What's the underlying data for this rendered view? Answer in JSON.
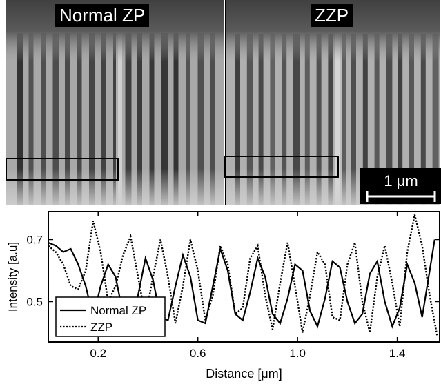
{
  "panels": {
    "left_label": "Normal ZP",
    "right_label": "ZZP",
    "scale_bar": "1 μm"
  },
  "chart_data": {
    "type": "line",
    "xlabel": "Distance [μm]",
    "ylabel": "Intensity [a.u]",
    "xlim": [
      0,
      1.57
    ],
    "ylim": [
      0.37,
      0.79
    ],
    "xticks": [
      "0.2",
      "0.6",
      "1.0",
      "1.4"
    ],
    "xtick_values": [
      0.2,
      0.6,
      1.0,
      1.4
    ],
    "yticks": [
      "0.5",
      "0.7"
    ],
    "ytick_values": [
      0.5,
      0.7
    ],
    "legend_placement": "bottom-left",
    "series": [
      {
        "name": "Normal ZP",
        "style": "solid",
        "x": [
          0.0,
          0.03,
          0.06,
          0.09,
          0.12,
          0.15,
          0.18,
          0.21,
          0.24,
          0.27,
          0.3,
          0.33,
          0.36,
          0.39,
          0.42,
          0.45,
          0.48,
          0.51,
          0.54,
          0.57,
          0.6,
          0.63,
          0.66,
          0.69,
          0.72,
          0.75,
          0.78,
          0.81,
          0.84,
          0.87,
          0.9,
          0.93,
          0.96,
          0.99,
          1.02,
          1.05,
          1.08,
          1.11,
          1.14,
          1.17,
          1.2,
          1.23,
          1.26,
          1.29,
          1.32,
          1.35,
          1.38,
          1.41,
          1.44,
          1.47,
          1.5,
          1.53,
          1.55
        ],
        "y": [
          0.69,
          0.68,
          0.66,
          0.67,
          0.62,
          0.55,
          0.45,
          0.55,
          0.62,
          0.58,
          0.46,
          0.43,
          0.52,
          0.64,
          0.57,
          0.45,
          0.44,
          0.55,
          0.65,
          0.58,
          0.44,
          0.43,
          0.55,
          0.67,
          0.6,
          0.46,
          0.44,
          0.53,
          0.64,
          0.58,
          0.46,
          0.43,
          0.51,
          0.62,
          0.6,
          0.47,
          0.42,
          0.51,
          0.63,
          0.61,
          0.5,
          0.43,
          0.46,
          0.59,
          0.63,
          0.5,
          0.42,
          0.48,
          0.62,
          0.56,
          0.45,
          0.6,
          0.7
        ]
      },
      {
        "name": "ZZP",
        "style": "dotted",
        "x": [
          0.0,
          0.03,
          0.06,
          0.09,
          0.12,
          0.15,
          0.18,
          0.21,
          0.24,
          0.27,
          0.3,
          0.33,
          0.36,
          0.39,
          0.42,
          0.45,
          0.48,
          0.51,
          0.54,
          0.57,
          0.6,
          0.63,
          0.66,
          0.69,
          0.72,
          0.75,
          0.78,
          0.81,
          0.84,
          0.87,
          0.9,
          0.93,
          0.96,
          0.99,
          1.02,
          1.05,
          1.08,
          1.11,
          1.14,
          1.17,
          1.2,
          1.23,
          1.26,
          1.29,
          1.32,
          1.35,
          1.38,
          1.41,
          1.44,
          1.47,
          1.5,
          1.53,
          1.56
        ],
        "y": [
          0.68,
          0.66,
          0.62,
          0.55,
          0.54,
          0.6,
          0.76,
          0.66,
          0.5,
          0.55,
          0.65,
          0.71,
          0.58,
          0.45,
          0.58,
          0.7,
          0.58,
          0.43,
          0.55,
          0.7,
          0.6,
          0.44,
          0.52,
          0.68,
          0.62,
          0.46,
          0.48,
          0.64,
          0.68,
          0.52,
          0.41,
          0.56,
          0.69,
          0.55,
          0.4,
          0.52,
          0.66,
          0.62,
          0.45,
          0.44,
          0.62,
          0.69,
          0.5,
          0.4,
          0.58,
          0.68,
          0.56,
          0.42,
          0.66,
          0.78,
          0.68,
          0.52,
          0.39
        ]
      }
    ]
  }
}
